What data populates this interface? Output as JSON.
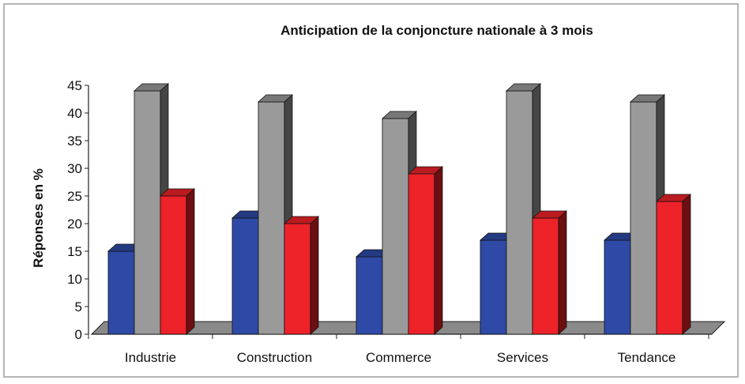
{
  "chart_data": {
    "type": "bar",
    "title": "Anticipation de la conjoncture nationale à 3 mois",
    "xlabel": "",
    "ylabel": "Réponses en %",
    "categories": [
      "Industrie",
      "Construction",
      "Commerce",
      "Services",
      "Tendance"
    ],
    "series": [
      {
        "color": "#2e4aa6",
        "values": [
          15,
          21,
          14,
          17,
          17
        ]
      },
      {
        "color": "#9a9a9a",
        "values": [
          44,
          42,
          39,
          44,
          42
        ]
      },
      {
        "color": "#ee2229",
        "values": [
          25,
          20,
          29,
          21,
          24
        ]
      }
    ],
    "ylim": [
      0,
      45
    ],
    "yticks": [
      0,
      5,
      10,
      15,
      20,
      25,
      30,
      35,
      40,
      45
    ],
    "grid": false,
    "legend": "none",
    "floor_color": "#8a8a8a"
  }
}
